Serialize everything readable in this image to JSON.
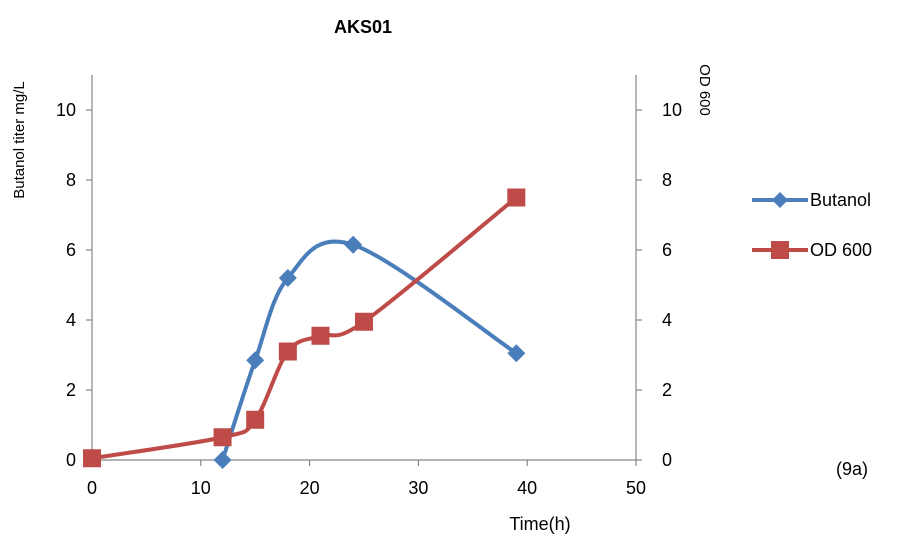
{
  "chart_data": {
    "type": "line",
    "title": "AKS01",
    "xlabel": "Time(h)",
    "ylabel": "Butanol titer mg/L",
    "y2label": "OD 600",
    "xlim": [
      0,
      50
    ],
    "ylim": [
      0,
      11
    ],
    "y2lim": [
      0,
      11
    ],
    "xticks": [
      0,
      10,
      20,
      30,
      40,
      50
    ],
    "yticks": [
      0,
      2,
      4,
      6,
      8,
      10
    ],
    "y2ticks": [
      0,
      2,
      4,
      6,
      8,
      10
    ],
    "grid": false,
    "legend_position": "right",
    "series": [
      {
        "name": "Butanol",
        "axis": "left",
        "color": "#4a7ebb",
        "marker": "diamond",
        "smooth": true,
        "x": [
          12,
          15,
          18,
          24,
          39
        ],
        "y": [
          0.0,
          2.85,
          5.2,
          6.15,
          3.05
        ]
      },
      {
        "name": "OD 600",
        "axis": "right",
        "color": "#be4b48",
        "marker": "square",
        "smooth": true,
        "x": [
          0,
          12,
          15,
          18,
          21,
          25,
          39
        ],
        "y": [
          0.05,
          0.65,
          1.15,
          3.1,
          3.55,
          3.95,
          7.5
        ]
      }
    ],
    "annotation": "(9a)"
  }
}
